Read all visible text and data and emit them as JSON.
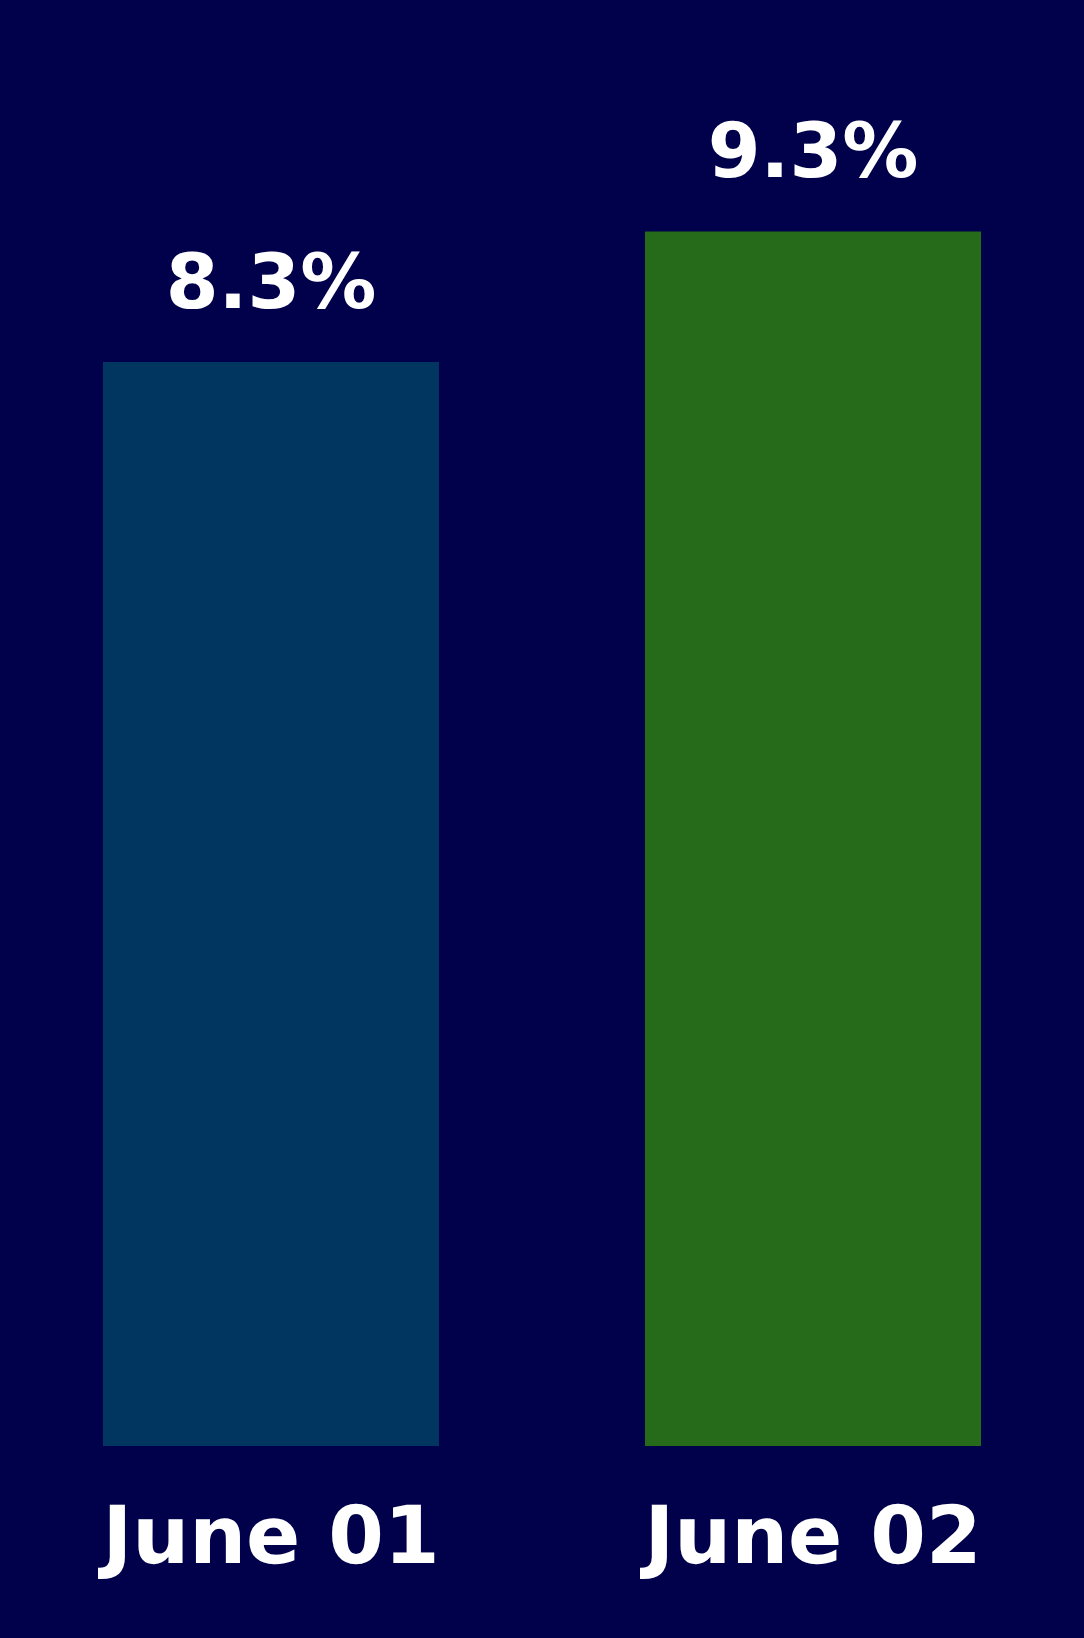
{
  "chart_data": {
    "type": "bar",
    "categories": [
      "June 01",
      "June 02"
    ],
    "values": [
      8.3,
      9.3
    ],
    "value_labels": [
      "8.3%",
      "9.3%"
    ],
    "colors": [
      "#00365f",
      "#266b1a"
    ],
    "grid": false,
    "legend": false
  }
}
